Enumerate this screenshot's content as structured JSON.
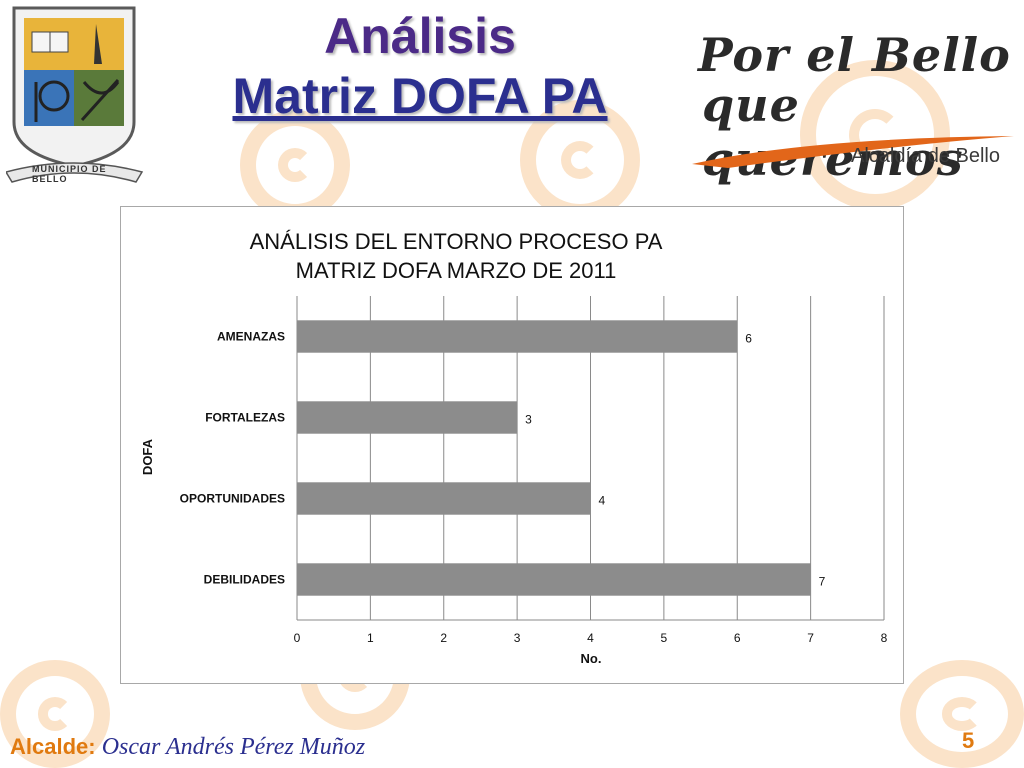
{
  "header": {
    "title_line1": "Análisis",
    "title_line2": "Matriz DOFA PA"
  },
  "crest": {
    "label": "MUNICIPIO DE BELLO"
  },
  "logo": {
    "slogan_line1": "Por el Bello",
    "slogan_line2": "que queremos",
    "org": "Alcaldía de Bello"
  },
  "footer": {
    "label": "Alcalde:",
    "name": "Oscar Andrés Pérez Muñoz",
    "page_number": "5"
  },
  "colors": {
    "bar": "#8c8c8c",
    "title_purple": "#4b2a87",
    "title_blue": "#2b2f8f",
    "accent_orange": "#e07a10",
    "watermark": "#fbe3c9"
  },
  "chart_data": {
    "type": "bar",
    "orientation": "horizontal",
    "title": "ANÁLISIS DEL ENTORNO PROCESO PA MATRIZ DOFA MARZO DE 2011",
    "title_lines": [
      "ANÁLISIS DEL ENTORNO PROCESO PA",
      "MATRIZ DOFA MARZO DE 2011"
    ],
    "categories": [
      "AMENAZAS",
      "FORTALEZAS",
      "OPORTUNIDADES",
      "DEBILIDADES"
    ],
    "values": [
      6,
      3,
      4,
      7
    ],
    "data_labels": [
      "6",
      "3",
      "4",
      "7"
    ],
    "xlabel": "No.",
    "ylabel": "DOFA",
    "xlim": [
      0,
      8
    ],
    "x_ticks": [
      "0",
      "1",
      "2",
      "3",
      "4",
      "5",
      "6",
      "7",
      "8"
    ],
    "grid": true,
    "legend": "none"
  }
}
